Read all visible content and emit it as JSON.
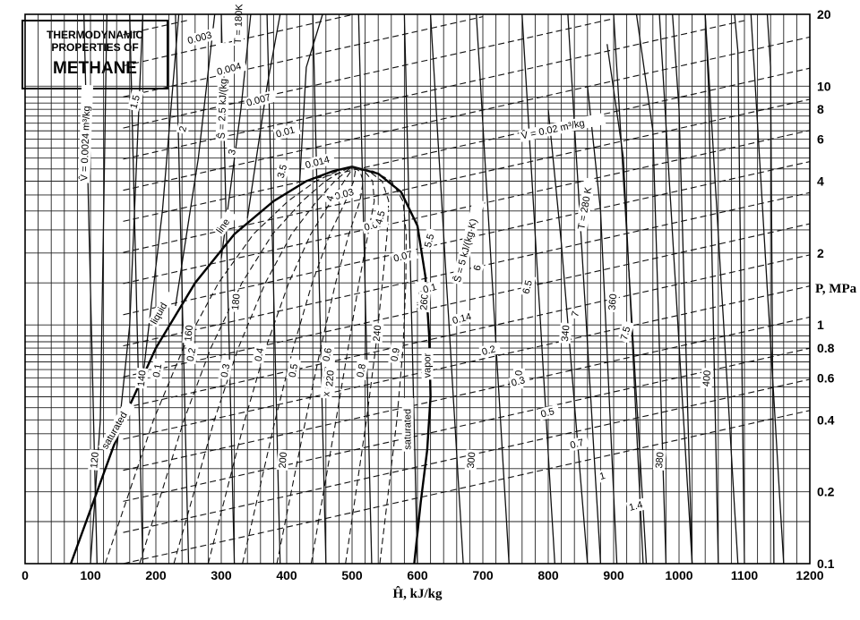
{
  "chart_data": {
    "type": "line",
    "title_lines": [
      "THERMODYNAMIC",
      "PROPERTIES OF",
      "METHANE"
    ],
    "xlabel": "Ĥ, kJ/kg",
    "ylabel": "P, MPa",
    "xlim": [
      0,
      1200
    ],
    "ylim": [
      0.1,
      20
    ],
    "yscale": "log",
    "grid": true,
    "x_ticks": [
      {
        "value": 0,
        "label": "0"
      },
      {
        "value": 100,
        "label": "100"
      },
      {
        "value": 200,
        "label": "200"
      },
      {
        "value": 300,
        "label": "300"
      },
      {
        "value": 400,
        "label": "400"
      },
      {
        "value": 500,
        "label": "500"
      },
      {
        "value": 600,
        "label": "600"
      },
      {
        "value": 700,
        "label": "700"
      },
      {
        "value": 800,
        "label": "800"
      },
      {
        "value": 900,
        "label": "900"
      },
      {
        "value": 1000,
        "label": "1000"
      },
      {
        "value": 1100,
        "label": "1100"
      },
      {
        "value": 1200,
        "label": "1200"
      }
    ],
    "y_ticks": [
      {
        "value": 0.1,
        "label": "0.1"
      },
      {
        "value": 0.2,
        "label": "0.2"
      },
      {
        "value": 0.4,
        "label": "0.4"
      },
      {
        "value": 0.6,
        "label": "0.6"
      },
      {
        "value": 0.8,
        "label": "0.8"
      },
      {
        "value": 1,
        "label": "1"
      },
      {
        "value": 2,
        "label": "2"
      },
      {
        "value": 4,
        "label": "4"
      },
      {
        "value": 6,
        "label": "6"
      },
      {
        "value": 8,
        "label": "8"
      },
      {
        "value": 10,
        "label": "10"
      },
      {
        "value": 20,
        "label": "20"
      }
    ],
    "saturation_dome": {
      "liquid_label": "saturated liquid line",
      "vapor_label": "saturated vapor line",
      "liquid": {
        "x": [
          70,
          110,
          150,
          200,
          260,
          320,
          380,
          430,
          470,
          500
        ],
        "y": [
          0.1,
          0.2,
          0.4,
          0.8,
          1.5,
          2.4,
          3.3,
          4.0,
          4.4,
          4.6
        ]
      },
      "vapor": {
        "x": [
          500,
          540,
          575,
          600,
          612,
          618,
          620,
          615,
          605,
          595
        ],
        "y": [
          4.6,
          4.3,
          3.6,
          2.6,
          1.6,
          0.9,
          0.5,
          0.3,
          0.18,
          0.1
        ]
      }
    },
    "series": [
      {
        "name": "T = 120 K",
        "x": [
          100,
          115,
          125
        ],
        "y": [
          0.1,
          0.4,
          20
        ]
      },
      {
        "name": "T = 140 K",
        "x": [
          140,
          160,
          180
        ],
        "y": [
          0.3,
          1.0,
          20
        ]
      },
      {
        "name": "T = 160 K",
        "x": [
          180,
          210,
          235
        ],
        "y": [
          0.6,
          3.0,
          20
        ]
      },
      {
        "name": "T = 180 K",
        "x": [
          230,
          265,
          290
        ],
        "y": [
          1.2,
          5.0,
          20
        ]
      },
      {
        "name": "T = 200 K",
        "x": [
          300,
          330,
          345
        ],
        "y": [
          1.9,
          8.0,
          20
        ]
      },
      {
        "name": "T = 220 K",
        "x": [
          340,
          370,
          390
        ],
        "y": [
          2.8,
          10.0,
          20
        ]
      },
      {
        "name": "T = 240 K",
        "x": [
          420,
          430,
          455
        ],
        "y": [
          4.0,
          12.0,
          20
        ]
      },
      {
        "name": "T = 260 K",
        "x": [
          860,
          820,
          800
        ],
        "y": [
          0.1,
          2.2,
          8.0
        ]
      },
      {
        "name": "T = 280 K",
        "x": [
          905,
          880,
          860
        ],
        "y": [
          0.1,
          3.0,
          10.0
        ]
      },
      {
        "name": "T = 300 K",
        "x": [
          945,
          915,
          890
        ],
        "y": [
          0.1,
          5.0,
          15.0
        ]
      },
      {
        "name": "T = 320 K",
        "x": [
          980,
          960,
          935
        ],
        "y": [
          0.1,
          6.5,
          20.0
        ]
      },
      {
        "name": "T = 340 K",
        "x": [
          1020,
          1000,
          990
        ],
        "y": [
          0.1,
          8.0,
          20.0
        ]
      },
      {
        "name": "T = 360 K",
        "x": [
          1060,
          1045,
          1040
        ],
        "y": [
          0.1,
          10.0,
          20.0
        ]
      },
      {
        "name": "T = 380 K",
        "x": [
          1100,
          1090,
          1085
        ],
        "y": [
          0.1,
          14.0,
          20.0
        ]
      },
      {
        "name": "T = 400 K",
        "x": [
          1145,
          1140,
          1135
        ],
        "y": [
          0.1,
          12.0,
          20.0
        ]
      }
    ]
  },
  "annotations": {
    "sat_liquid": "saturated",
    "sat_liquid2": "liquid",
    "sat_liquid3": "line",
    "sat_vapor": "saturated",
    "sat_vapor2": "vapor",
    "sat_vapor3": "line",
    "t180": "T = 180K",
    "s25": "Ŝ = 2.5 kJ/(kg·K)",
    "v0024": "V̂ = 0.0024 m³/kg",
    "v002": "V̂ = 0.02 m³/kg",
    "s5": "Ŝ = 5 kJ/(kg·K)",
    "t280": "T = 280 K",
    "x07": "x = 0.7",
    "q_labels": [
      "0.1",
      "0.2",
      "0.3",
      "0.4",
      "0.5",
      "0.6",
      "0.8",
      "0.9"
    ],
    "t_labels": [
      "120",
      "140",
      "160",
      "180",
      "200",
      "220",
      "240",
      "260",
      "300",
      "320",
      "340",
      "360",
      "380",
      "400"
    ],
    "v_labels": [
      "0.003",
      "0.004",
      "0.007",
      "0.01",
      "0.014",
      "0.03",
      "0.05",
      "0.07",
      "0.1",
      "0.14",
      "0.2",
      "0.3",
      "0.5",
      "0.7",
      "1",
      "1.4"
    ],
    "s_labels": [
      "1.5",
      "2",
      "3",
      "3.5",
      "4",
      "4.5",
      "5.5",
      "6",
      "6.5",
      "7",
      "7.5"
    ]
  }
}
